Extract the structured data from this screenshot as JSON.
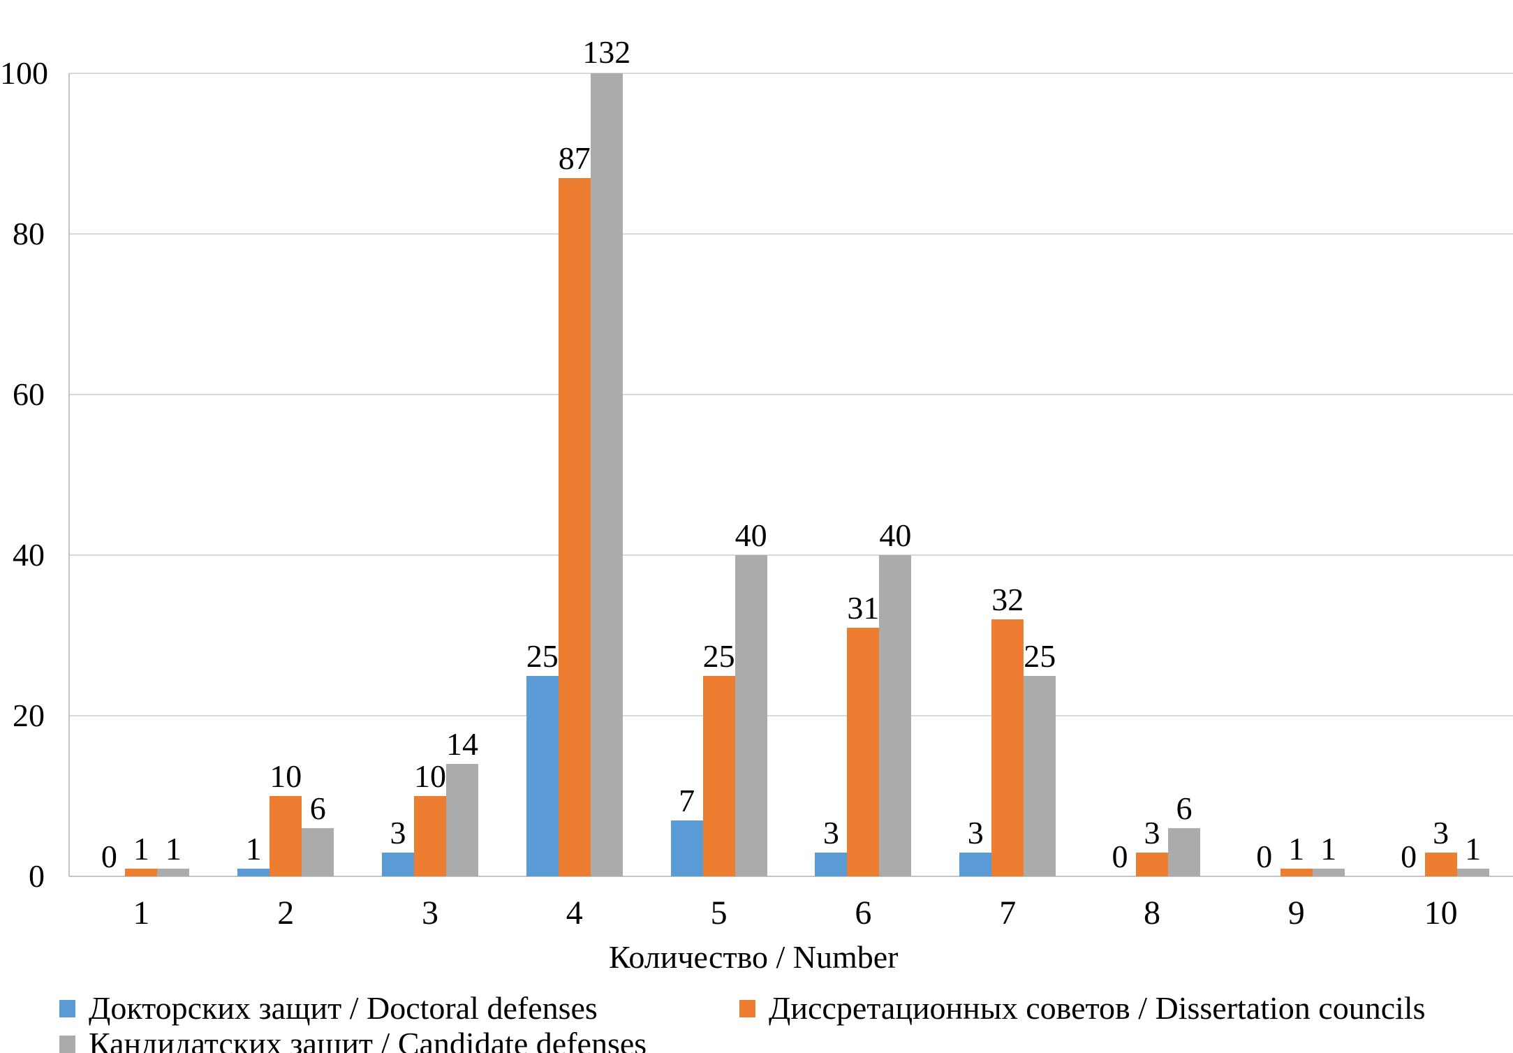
{
  "chart_data": {
    "type": "bar",
    "title": "",
    "categories": [
      "1",
      "2",
      "3",
      "4",
      "5",
      "6",
      "7",
      "8",
      "9",
      "10"
    ],
    "series": [
      {
        "name": "Докторских защит / Doctoral defenses",
        "color": "#5B9BD5",
        "values": [
          0,
          1,
          3,
          25,
          7,
          3,
          3,
          0,
          0,
          0
        ]
      },
      {
        "name": "Диссретационных советов / Dissertation councils",
        "color": "#ED7D31",
        "values": [
          1,
          10,
          10,
          87,
          25,
          31,
          32,
          3,
          1,
          3
        ]
      },
      {
        "name": "Кандидатских защит / Candidate defenses",
        "color": "#ABABAB",
        "values": [
          1,
          6,
          14,
          132,
          40,
          40,
          25,
          6,
          1,
          1
        ]
      }
    ],
    "xlabel": "Количество / Number",
    "ylabel": "",
    "ylim": [
      0,
      100
    ],
    "yticks": [
      0,
      20,
      40,
      60,
      80,
      100
    ],
    "grid": true,
    "grid_color": "#D9D9D9",
    "axis_color": "#C4C4C4",
    "data_labels": true,
    "legend_position": "bottom",
    "note_clipping": "bar value 132 is clipped at y-axis max 100; its label sits above the plot top"
  }
}
